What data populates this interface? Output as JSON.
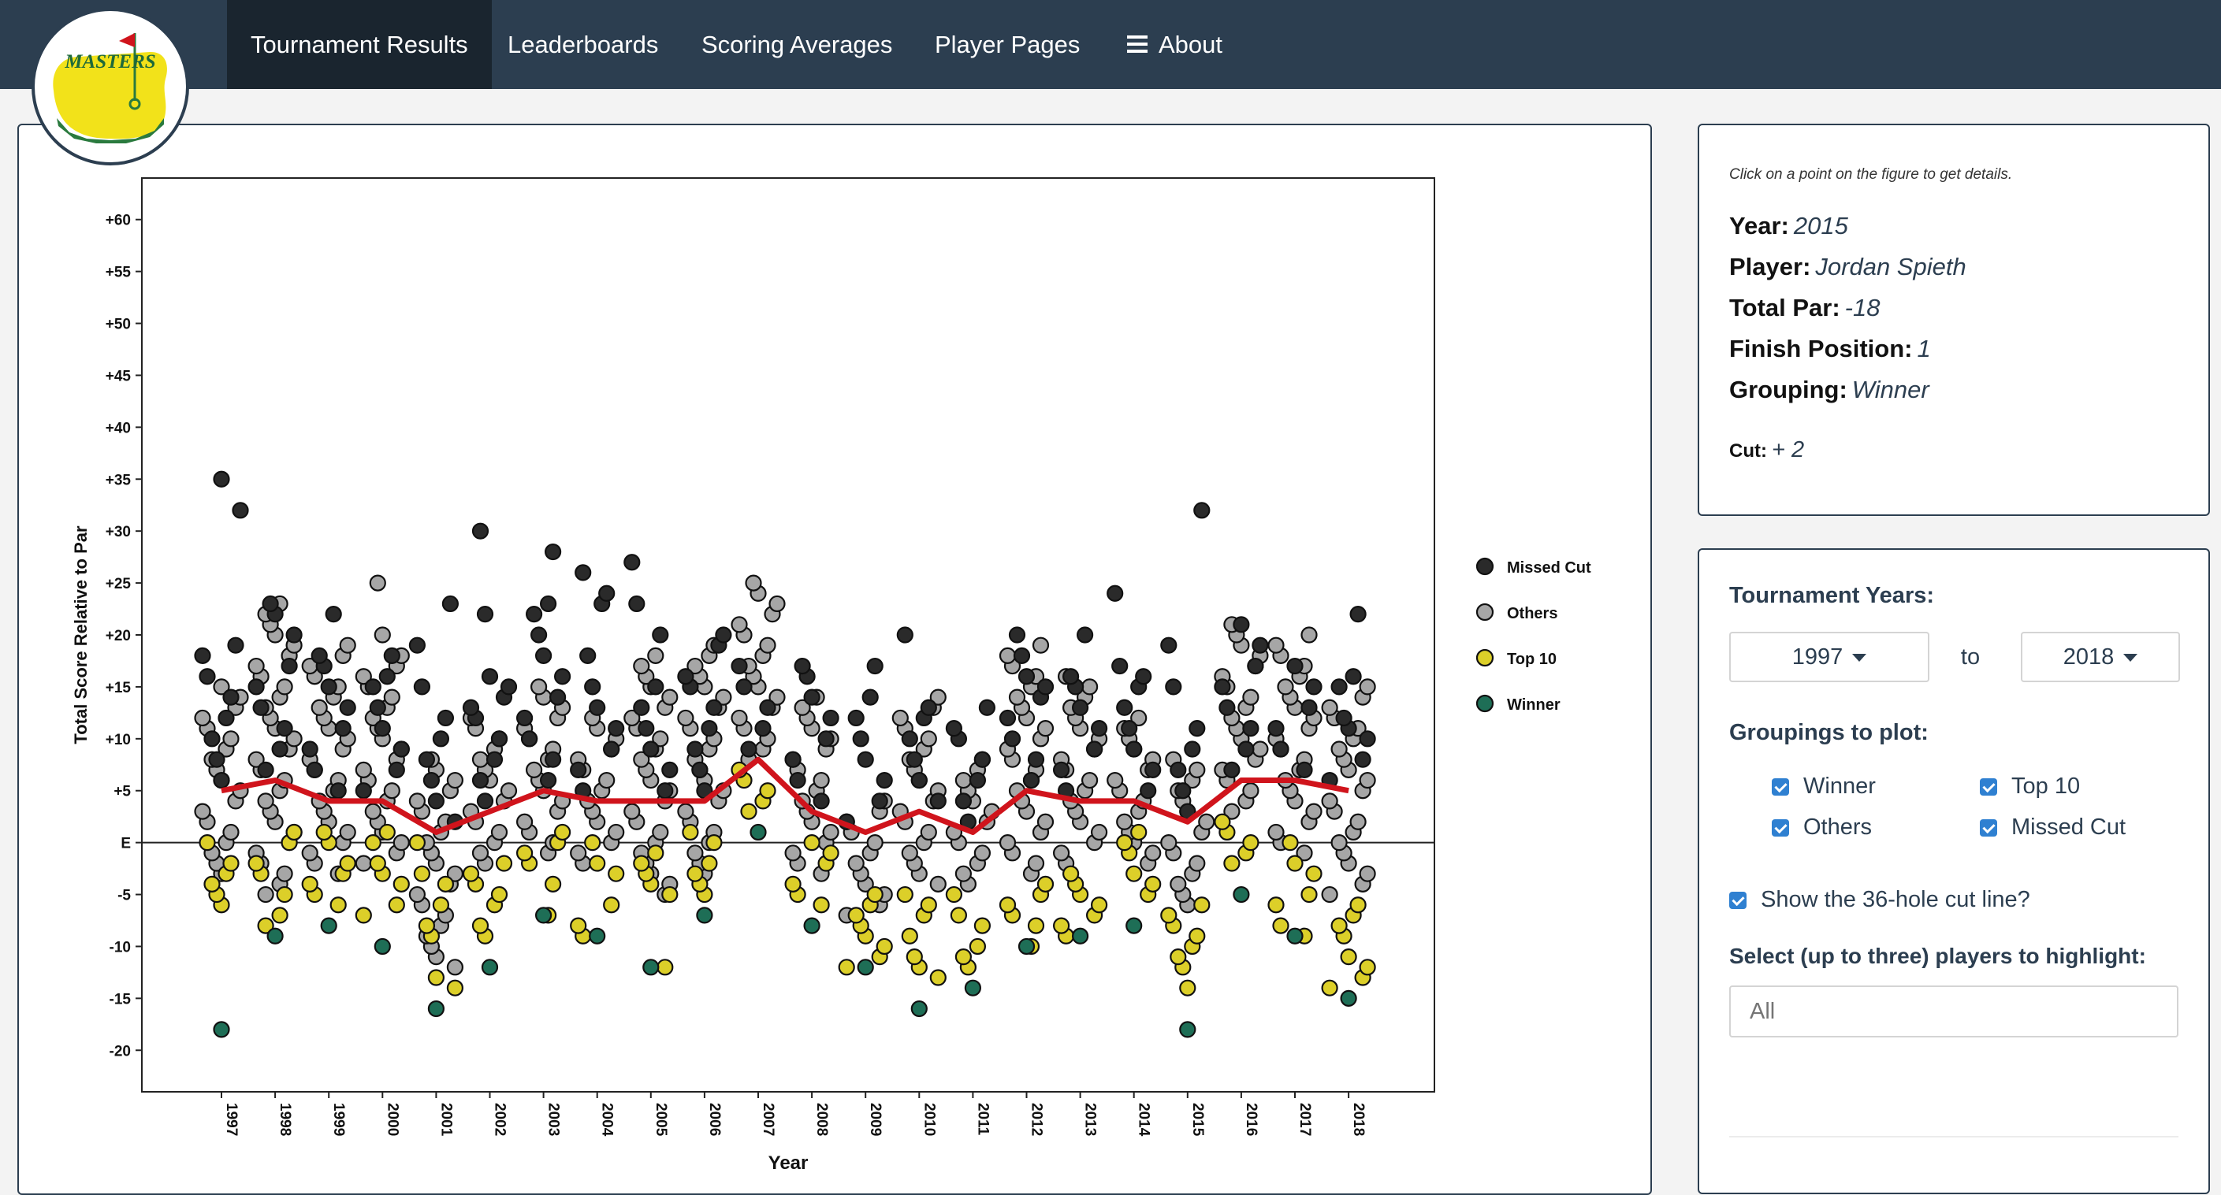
{
  "nav": {
    "items": [
      {
        "label": "Tournament Results",
        "active": true
      },
      {
        "label": "Leaderboards"
      },
      {
        "label": "Scoring Averages"
      },
      {
        "label": "Player Pages"
      },
      {
        "label": "About",
        "icon": "menu-icon"
      }
    ],
    "logo_text": "MASTERS"
  },
  "details": {
    "hint": "Click on a point on the figure to get details.",
    "year_label": "Year:",
    "year": "2015",
    "player_label": "Player:",
    "player": "Jordan Spieth",
    "par_label": "Total Par:",
    "par": "-18",
    "finish_label": "Finish Position:",
    "finish": "1",
    "grouping_label": "Grouping:",
    "grouping": "Winner",
    "cut_label": "Cut:",
    "cut": "+ 2"
  },
  "controls": {
    "years_label": "Tournament Years:",
    "year_from": "1997",
    "to_label": "to",
    "year_to": "2018",
    "groupings_label": "Groupings to plot:",
    "groupings": [
      "Winner",
      "Top 10",
      "Others",
      "Missed Cut"
    ],
    "cutline_label": "Show the 36-hole cut line?",
    "highlight_label": "Select (up to three) players to highlight:",
    "highlight_placeholder": "All"
  },
  "colors": {
    "nav_bg": "#2c3e50",
    "nav_active": "#1a252f",
    "missed_cut": "#2a2a2a",
    "others": "#a6a6a6",
    "top10": "#dccf29",
    "winner": "#1e6e56",
    "cut_line": "#d0141c",
    "checkbox": "#2f80d1"
  },
  "chart_data": {
    "type": "scatter",
    "xlabel": "Year",
    "ylabel": "Total Score Relative to Par",
    "ylim": [
      -24,
      64
    ],
    "y_ticks": [
      60,
      55,
      50,
      45,
      40,
      35,
      30,
      25,
      20,
      15,
      10,
      5,
      0,
      -5,
      -10,
      -15,
      -20
    ],
    "y_tick_labels": [
      "+60",
      "+55",
      "+50",
      "+45",
      "+40",
      "+35",
      "+30",
      "+25",
      "+20",
      "+15",
      "+10",
      "+5",
      "E",
      "-5",
      "-10",
      "-15",
      "-20"
    ],
    "categories": [
      "1997",
      "1998",
      "1999",
      "2000",
      "2001",
      "2002",
      "2003",
      "2004",
      "2005",
      "2006",
      "2007",
      "2008",
      "2009",
      "2010",
      "2011",
      "2012",
      "2013",
      "2014",
      "2015",
      "2016",
      "2017",
      "2018"
    ],
    "legend": [
      "Missed Cut",
      "Others",
      "Top 10",
      "Winner"
    ],
    "legend_position": "right",
    "grid": false,
    "cut_line": [
      5,
      6,
      4,
      4,
      1,
      3,
      5,
      4,
      4,
      4,
      8,
      3,
      1,
      3,
      1,
      5,
      4,
      4,
      2,
      6,
      6,
      5
    ],
    "winner": [
      -18,
      -9,
      -8,
      -10,
      -16,
      -12,
      -7,
      -9,
      -12,
      -7,
      1,
      -8,
      -12,
      -16,
      -14,
      -10,
      -9,
      -8,
      -18,
      -5,
      -9,
      -15
    ],
    "top10": [
      [
        -6,
        -5,
        -4,
        -3,
        -2,
        0
      ],
      [
        -8,
        -7,
        -5,
        -3,
        -2,
        0,
        1
      ],
      [
        -6,
        -5,
        -4,
        -3,
        -2,
        0,
        1
      ],
      [
        -7,
        -6,
        -4,
        -3,
        -2,
        0,
        1
      ],
      [
        -14,
        -13,
        -9,
        -8,
        -6,
        -4,
        -3,
        0
      ],
      [
        -9,
        -8,
        -6,
        -5,
        -4,
        -3,
        -2
      ],
      [
        -7,
        -4,
        -2,
        -1,
        0,
        1
      ],
      [
        -9,
        -8,
        -6,
        -3,
        -2,
        0
      ],
      [
        -12,
        -5,
        -4,
        -3,
        -2,
        -1
      ],
      [
        -5,
        -4,
        -3,
        -2,
        0,
        1
      ],
      [
        3,
        4,
        5,
        6,
        7
      ],
      [
        -6,
        -5,
        -4,
        -2,
        -1,
        0
      ],
      [
        -12,
        -11,
        -10,
        -9,
        -8,
        -7,
        -6,
        -5
      ],
      [
        -13,
        -12,
        -11,
        -9,
        -7,
        -6,
        -5
      ],
      [
        -12,
        -11,
        -10,
        -8,
        -7,
        -5
      ],
      [
        -10,
        -8,
        -7,
        -6,
        -5,
        -4
      ],
      [
        -9,
        -8,
        -7,
        -6,
        -5,
        -4,
        -3
      ],
      [
        -5,
        -4,
        -3,
        -1,
        0,
        1
      ],
      [
        -14,
        -12,
        -11,
        -10,
        -9,
        -8,
        -7,
        -6
      ],
      [
        -2,
        -1,
        0,
        1,
        2
      ],
      [
        -9,
        -8,
        -6,
        -5,
        -3,
        -2,
        0
      ],
      [
        -14,
        -13,
        -12,
        -11,
        -9,
        -8,
        -7,
        -6
      ]
    ],
    "others": [
      [
        -3,
        -2,
        -1,
        0,
        1,
        2,
        3,
        4,
        5,
        6,
        7,
        8,
        9,
        10,
        11,
        12,
        13,
        14,
        15
      ],
      [
        -5,
        -4,
        -3,
        -2,
        -1,
        0,
        1,
        2,
        3,
        4,
        5,
        6,
        7,
        8,
        9,
        10,
        11,
        12,
        13,
        14,
        15,
        16,
        17,
        18,
        19,
        20,
        21,
        22,
        23
      ],
      [
        -3,
        -2,
        -1,
        0,
        1,
        2,
        3,
        4,
        5,
        6,
        7,
        8,
        9,
        10,
        11,
        12,
        13,
        14,
        15,
        16,
        17,
        18,
        19
      ],
      [
        -2,
        -1,
        0,
        1,
        2,
        3,
        4,
        5,
        6,
        7,
        8,
        9,
        10,
        11,
        12,
        13,
        14,
        15,
        16,
        17,
        18,
        20,
        25
      ],
      [
        -12,
        -11,
        -10,
        -9,
        -8,
        -7,
        -6,
        -5,
        -4,
        -3,
        -2,
        -1,
        0,
        1,
        2,
        3,
        4,
        5,
        6,
        7,
        8
      ],
      [
        -2,
        -1,
        0,
        1,
        2,
        3,
        4,
        5,
        6,
        7,
        8,
        9,
        10,
        11,
        12
      ],
      [
        -1,
        0,
        1,
        2,
        3,
        4,
        5,
        6,
        7,
        8,
        9,
        10,
        11,
        12,
        13,
        14,
        15
      ],
      [
        -2,
        -1,
        0,
        1,
        2,
        3,
        4,
        5,
        6,
        7,
        8,
        9,
        10,
        11,
        12
      ],
      [
        -5,
        -4,
        -3,
        -2,
        -1,
        0,
        1,
        2,
        3,
        4,
        5,
        6,
        7,
        8,
        9,
        10,
        11,
        12,
        13,
        14,
        15,
        16,
        17,
        18
      ],
      [
        -3,
        -2,
        -1,
        0,
        1,
        2,
        3,
        4,
        5,
        6,
        7,
        8,
        9,
        10,
        11,
        12,
        13,
        14,
        15,
        16,
        17,
        18,
        19
      ],
      [
        8,
        9,
        10,
        11,
        12,
        13,
        14,
        15,
        16,
        17,
        18,
        19,
        20,
        21,
        22,
        23,
        24,
        25
      ],
      [
        -3,
        -2,
        -1,
        0,
        1,
        2,
        3,
        4,
        5,
        6,
        7,
        8,
        9,
        10,
        11,
        12,
        13,
        14
      ],
      [
        -7,
        -6,
        -5,
        -4,
        -3,
        -2,
        -1,
        0,
        1,
        2,
        3,
        4
      ],
      [
        -4,
        -3,
        -2,
        -1,
        0,
        1,
        2,
        3,
        4,
        5,
        6,
        7,
        8,
        9,
        10,
        11,
        12,
        13,
        14
      ],
      [
        -4,
        -3,
        -2,
        -1,
        0,
        1,
        2,
        3,
        4,
        5,
        6,
        7,
        8
      ],
      [
        -3,
        -2,
        -1,
        0,
        1,
        2,
        3,
        4,
        5,
        6,
        7,
        8,
        9,
        10,
        11,
        12,
        13,
        14,
        15,
        16,
        17,
        18,
        19
      ],
      [
        -2,
        -1,
        0,
        1,
        2,
        3,
        4,
        5,
        6,
        7,
        8,
        9,
        10,
        11,
        12,
        13,
        14,
        15,
        16
      ],
      [
        -2,
        -1,
        0,
        1,
        2,
        3,
        4,
        5,
        6,
        7,
        8,
        9,
        10,
        11,
        12
      ],
      [
        -6,
        -5,
        -4,
        -3,
        -2,
        -1,
        0,
        1,
        2,
        3,
        4,
        5,
        6,
        7,
        8
      ],
      [
        3,
        4,
        5,
        6,
        7,
        8,
        9,
        10,
        11,
        12,
        13,
        14,
        15,
        16,
        17,
        18,
        19,
        20,
        21
      ],
      [
        -1,
        0,
        1,
        2,
        3,
        4,
        5,
        6,
        7,
        8,
        9,
        10,
        11,
        12,
        13,
        14,
        15,
        16,
        17,
        18,
        19,
        20
      ],
      [
        -5,
        -4,
        -3,
        -2,
        -1,
        0,
        1,
        2,
        3,
        4,
        5,
        6,
        7,
        8,
        9,
        10,
        11,
        12,
        13,
        14,
        15
      ]
    ],
    "missed_cut": [
      [
        6,
        8,
        10,
        12,
        14,
        16,
        18,
        19,
        32,
        35
      ],
      [
        7,
        9,
        11,
        13,
        15,
        17,
        20,
        22,
        23
      ],
      [
        5,
        7,
        9,
        11,
        13,
        15,
        17,
        18,
        22
      ],
      [
        5,
        7,
        9,
        11,
        13,
        15,
        16,
        18
      ],
      [
        2,
        4,
        6,
        8,
        10,
        12,
        15,
        19,
        23
      ],
      [
        4,
        6,
        8,
        10,
        12,
        13,
        14,
        15,
        16,
        22,
        30
      ],
      [
        6,
        8,
        10,
        12,
        14,
        16,
        18,
        20,
        22,
        23,
        28
      ],
      [
        5,
        7,
        9,
        11,
        13,
        15,
        18,
        23,
        24,
        26
      ],
      [
        5,
        7,
        9,
        11,
        13,
        15,
        20,
        23,
        27
      ],
      [
        5,
        7,
        9,
        11,
        13,
        15,
        16,
        19,
        20
      ],
      [
        9,
        11,
        13,
        15,
        17
      ],
      [
        4,
        6,
        8,
        10,
        12,
        14,
        16,
        17
      ],
      [
        2,
        4,
        6,
        8,
        10,
        12,
        14,
        17
      ],
      [
        4,
        6,
        8,
        10,
        12,
        13,
        20
      ],
      [
        2,
        4,
        6,
        8,
        10,
        11,
        13
      ],
      [
        6,
        8,
        10,
        12,
        14,
        15,
        16,
        18,
        20
      ],
      [
        5,
        7,
        9,
        11,
        13,
        15,
        16,
        20
      ],
      [
        5,
        7,
        9,
        11,
        13,
        15,
        16,
        17,
        24
      ],
      [
        3,
        5,
        7,
        9,
        11,
        15,
        19,
        32
      ],
      [
        7,
        9,
        11,
        13,
        15,
        17,
        19,
        21
      ],
      [
        7,
        9,
        11,
        13,
        15,
        17
      ],
      [
        6,
        8,
        10,
        11,
        12,
        15,
        16,
        22
      ]
    ]
  }
}
